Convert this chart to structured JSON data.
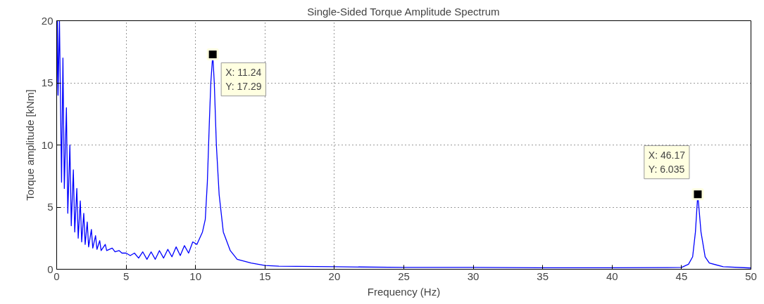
{
  "chart_data": {
    "type": "line",
    "title": "Single-Sided Torque Amplitude Spectrum",
    "xlabel": "Frequency (Hz)",
    "ylabel": "Torque amplitude [kNm]",
    "x": [
      0,
      0.05,
      0.1,
      0.2,
      0.35,
      0.45,
      0.55,
      0.7,
      0.8,
      0.95,
      1.05,
      1.2,
      1.3,
      1.45,
      1.55,
      1.7,
      1.8,
      1.95,
      2.05,
      2.2,
      2.3,
      2.5,
      2.6,
      2.8,
      2.9,
      3.1,
      3.2,
      3.5,
      3.6,
      4,
      4.2,
      4.5,
      4.7,
      5,
      5.3,
      5.6,
      5.9,
      6.2,
      6.5,
      6.8,
      7.1,
      7.4,
      7.7,
      8,
      8.3,
      8.6,
      8.9,
      9.2,
      9.5,
      9.8,
      10.1,
      10.3,
      10.5,
      10.7,
      10.85,
      11,
      11.1,
      11.24,
      11.35,
      11.5,
      11.7,
      12,
      12.5,
      13,
      14,
      15,
      16,
      20,
      25,
      30,
      35,
      40,
      44,
      45,
      45.5,
      45.8,
      46,
      46.17,
      46.4,
      46.7,
      47,
      48,
      50
    ],
    "series": [
      {
        "color": "#0000ff",
        "values": [
          14,
          20,
          14,
          20,
          7,
          17,
          6.5,
          13,
          4.5,
          10,
          3.5,
          8,
          3,
          6.5,
          2.5,
          5.5,
          2.2,
          4.5,
          2,
          3.8,
          1.8,
          3.2,
          1.7,
          2.7,
          1.6,
          2.3,
          1.5,
          2,
          1.5,
          1.7,
          1.4,
          1.5,
          1.3,
          1.3,
          1.1,
          1.3,
          0.9,
          1.4,
          0.8,
          1.4,
          0.8,
          1.5,
          0.9,
          1.6,
          1,
          1.8,
          1.1,
          1.9,
          1.3,
          2.2,
          2,
          2.5,
          3,
          4,
          7,
          12,
          15,
          17.29,
          15,
          10,
          6,
          3,
          1.5,
          0.8,
          0.5,
          0.3,
          0.25,
          0.2,
          0.15,
          0.15,
          0.12,
          0.12,
          0.13,
          0.15,
          0.4,
          1,
          3,
          6.035,
          3,
          1,
          0.5,
          0.2,
          0.1
        ]
      }
    ],
    "xlim": [
      0,
      50
    ],
    "ylim": [
      0,
      20
    ],
    "xticks": [
      0,
      5,
      10,
      15,
      20,
      25,
      30,
      35,
      40,
      45,
      50
    ],
    "yticks": [
      0,
      5,
      10,
      15,
      20
    ],
    "grid": true,
    "marker": "none",
    "line_style": "solid",
    "annotations": [
      {
        "text": "X: 11.24\nY: 17.29",
        "x": 11.24,
        "y": 17.29
      },
      {
        "text": "X: 46.17\nY: 6.035",
        "x": 46.17,
        "y": 6.035
      }
    ]
  }
}
